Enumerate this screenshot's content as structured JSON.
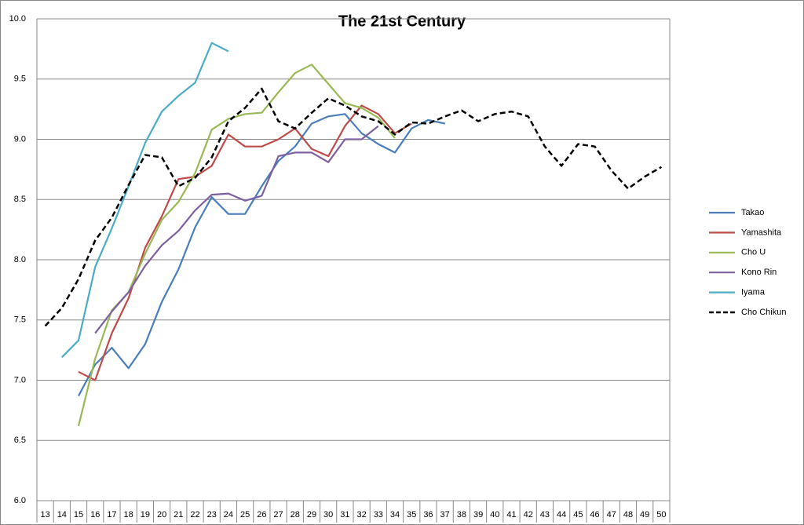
{
  "chart_data": {
    "type": "line",
    "title": "The 21st Century",
    "categories": [
      "13",
      "14",
      "15",
      "16",
      "17",
      "18",
      "19",
      "20",
      "21",
      "22",
      "23",
      "24",
      "25",
      "26",
      "27",
      "28",
      "29",
      "30",
      "31",
      "32",
      "33",
      "34",
      "35",
      "36",
      "37",
      "38",
      "39",
      "40",
      "41",
      "42",
      "43",
      "44",
      "45",
      "46",
      "47",
      "48",
      "49",
      "50"
    ],
    "ylim": [
      6.0,
      10.0
    ],
    "yticks": [
      {
        "value": 6.0,
        "label": "6.0"
      },
      6.5,
      {
        "value": 7.0,
        "label": "7.0"
      },
      7.5,
      {
        "value": 8.0,
        "label": "8.0"
      },
      8.5,
      {
        "value": 9.0,
        "label": "9.0"
      },
      9.5,
      {
        "value": 10.0,
        "label": "10.0"
      }
    ],
    "grid": true,
    "legend": "right",
    "series": [
      {
        "name": "Takao",
        "color": "#4a7ebb",
        "line_style": "solid",
        "values": [
          null,
          null,
          6.87,
          7.13,
          7.27,
          7.1,
          7.3,
          7.65,
          7.92,
          8.27,
          8.52,
          8.38,
          8.38,
          8.61,
          8.82,
          8.94,
          9.13,
          9.19,
          9.21,
          9.05,
          8.96,
          8.89,
          9.09,
          9.16,
          9.13,
          null,
          null,
          null,
          null,
          null,
          null,
          null,
          null,
          null,
          null,
          null,
          null,
          null
        ]
      },
      {
        "name": "Yamashita",
        "color": "#be4b48",
        "line_style": "solid",
        "values": [
          null,
          null,
          7.07,
          7.0,
          7.39,
          7.68,
          8.1,
          8.36,
          8.67,
          8.69,
          8.78,
          9.04,
          8.94,
          8.94,
          9.0,
          9.09,
          8.92,
          8.86,
          9.11,
          9.28,
          9.21,
          9.05,
          9.13,
          null,
          null,
          null,
          null,
          null,
          null,
          null,
          null,
          null,
          null,
          null,
          null,
          null,
          null,
          null
        ]
      },
      {
        "name": "Cho U",
        "color": "#98b954",
        "line_style": "solid",
        "values": [
          null,
          null,
          6.62,
          7.18,
          7.58,
          7.73,
          8.05,
          8.33,
          8.48,
          8.72,
          9.08,
          9.17,
          9.21,
          9.22,
          9.39,
          9.55,
          9.62,
          9.46,
          9.3,
          9.26,
          9.18,
          9.01,
          null,
          null,
          null,
          null,
          null,
          null,
          null,
          null,
          null,
          null,
          null,
          null,
          null,
          null,
          null,
          null
        ]
      },
      {
        "name": "Kono Rin",
        "color": "#7d60a0",
        "line_style": "solid",
        "values": [
          null,
          null,
          null,
          7.39,
          7.57,
          7.73,
          7.95,
          8.12,
          8.24,
          8.41,
          8.54,
          8.55,
          8.49,
          8.53,
          8.86,
          8.89,
          8.89,
          8.81,
          9.0,
          9.0,
          9.11,
          null,
          null,
          null,
          null,
          null,
          null,
          null,
          null,
          null,
          null,
          null,
          null,
          null,
          null,
          null,
          null,
          null
        ]
      },
      {
        "name": "Iyama",
        "color": "#4aacc6",
        "line_style": "solid",
        "values": [
          null,
          7.19,
          7.33,
          7.94,
          8.26,
          8.61,
          8.97,
          9.23,
          9.36,
          9.47,
          9.8,
          9.73,
          null,
          null,
          null,
          null,
          null,
          null,
          null,
          null,
          null,
          null,
          null,
          null,
          null,
          null,
          null,
          null,
          null,
          null,
          null,
          null,
          null,
          null,
          null,
          null,
          null,
          null
        ]
      },
      {
        "name": "Cho Chikun",
        "color": "#000000",
        "line_style": "dashed",
        "values": [
          7.45,
          7.6,
          7.84,
          8.16,
          8.35,
          8.62,
          8.87,
          8.85,
          8.61,
          8.68,
          8.85,
          9.15,
          9.26,
          9.42,
          9.15,
          9.09,
          9.22,
          9.34,
          9.28,
          9.19,
          9.15,
          9.04,
          9.14,
          9.13,
          9.19,
          9.24,
          9.15,
          9.21,
          9.23,
          9.19,
          8.94,
          8.78,
          8.96,
          8.94,
          8.74,
          8.59,
          8.69,
          8.77
        ]
      }
    ]
  }
}
